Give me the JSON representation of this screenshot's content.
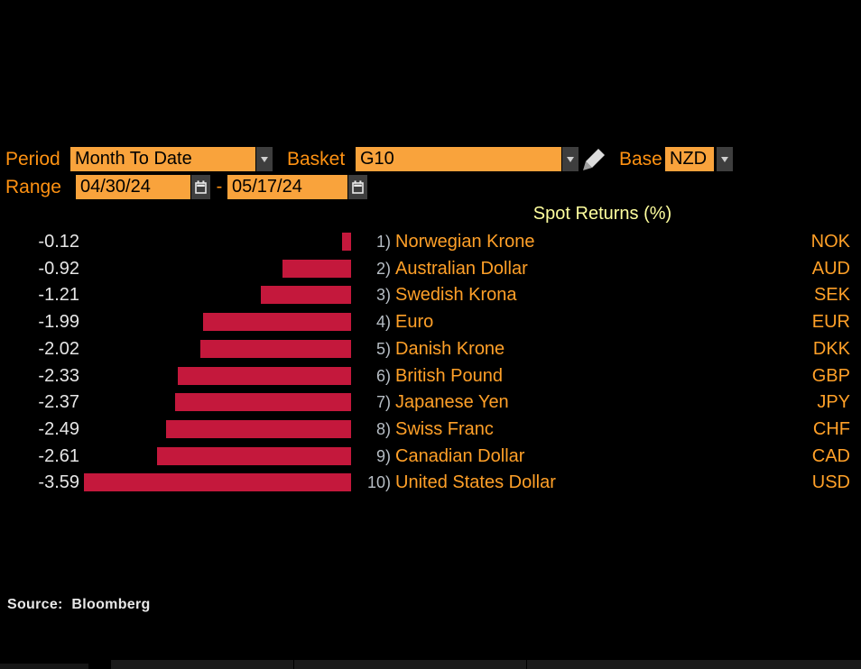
{
  "toolbar": {
    "period": {
      "label": "Period",
      "value": "Month To Date"
    },
    "basket": {
      "label": "Basket",
      "value": "G10"
    },
    "base": {
      "label": "Base",
      "value": "NZD"
    },
    "range": {
      "label": "Range",
      "start": "04/30/24",
      "separator": "-",
      "end": "05/17/24"
    }
  },
  "chart_data": {
    "type": "bar",
    "orientation": "horizontal",
    "title": "Spot Returns (%)",
    "unit": "%",
    "value_axis_range": [
      -3.59,
      0
    ],
    "grid": false,
    "legend": "none",
    "bar_color": "#C4183C",
    "categories": [
      "Norwegian Krone",
      "Australian Dollar",
      "Swedish Krona",
      "Euro",
      "Danish Krone",
      "British Pound",
      "Japanese Yen",
      "Swiss Franc",
      "Canadian Dollar",
      "United States Dollar"
    ],
    "values": [
      -0.12,
      -0.92,
      -1.21,
      -1.99,
      -2.02,
      -2.33,
      -2.37,
      -2.49,
      -2.61,
      -3.59
    ],
    "rows": [
      {
        "rank": "1)",
        "name": "Norwegian Krone",
        "code": "NOK",
        "value": -0.12,
        "value_label": "-0.12"
      },
      {
        "rank": "2)",
        "name": "Australian Dollar",
        "code": "AUD",
        "value": -0.92,
        "value_label": "-0.92"
      },
      {
        "rank": "3)",
        "name": "Swedish Krona",
        "code": "SEK",
        "value": -1.21,
        "value_label": "-1.21"
      },
      {
        "rank": "4)",
        "name": "Euro",
        "code": "EUR",
        "value": -1.99,
        "value_label": "-1.99"
      },
      {
        "rank": "5)",
        "name": "Danish Krone",
        "code": "DKK",
        "value": -2.02,
        "value_label": "-2.02"
      },
      {
        "rank": "6)",
        "name": "British Pound",
        "code": "GBP",
        "value": -2.33,
        "value_label": "-2.33"
      },
      {
        "rank": "7)",
        "name": "Japanese Yen",
        "code": "JPY",
        "value": -2.37,
        "value_label": "-2.37"
      },
      {
        "rank": "8)",
        "name": "Swiss Franc",
        "code": "CHF",
        "value": -2.49,
        "value_label": "-2.49"
      },
      {
        "rank": "9)",
        "name": "Canadian Dollar",
        "code": "CAD",
        "value": -2.61,
        "value_label": "-2.61"
      },
      {
        "rank": "10)",
        "name": "United States Dollar",
        "code": "USD",
        "value": -3.59,
        "value_label": "-3.59"
      }
    ]
  },
  "source": "Source: Bloomberg",
  "colors": {
    "background": "#000000",
    "amber_label": "#FF9212",
    "amber_name": "#FFA028",
    "input_background": "#F9A33C",
    "input_text": "#000000",
    "bar_red": "#C4183C",
    "title_yellow": "#FFFF9E",
    "value_text": "#E6E6E6",
    "rank_text": "#B7BEC5",
    "button_background": "#3E3E3E"
  }
}
